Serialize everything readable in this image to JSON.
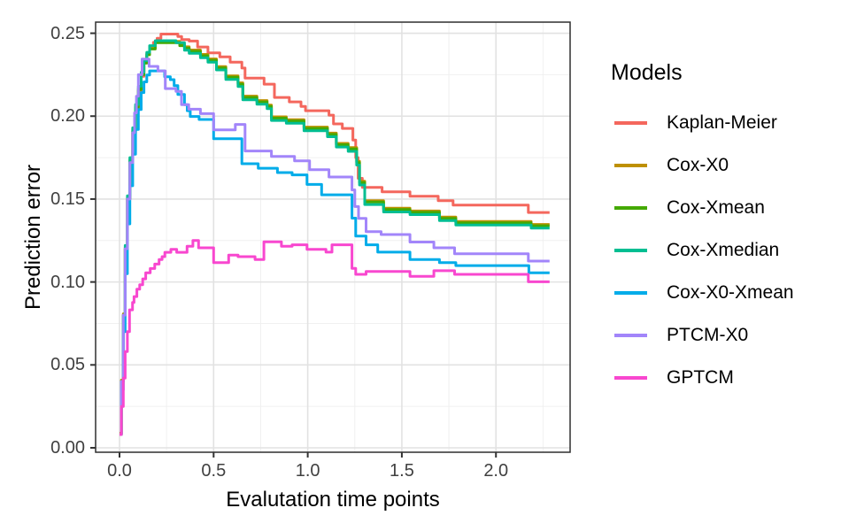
{
  "figure": {
    "background": "#ffffff",
    "legend": {
      "title": "Models"
    }
  },
  "chart_data": {
    "type": "line",
    "line_style": "step-after",
    "title": "",
    "xlabel": "Evalutation time points",
    "ylabel": "Prediction error",
    "legend_position": "right",
    "grid": true,
    "xlim": [
      -0.127,
      2.394
    ],
    "ylim": [
      -0.00267,
      0.2567
    ],
    "x_ticks": {
      "values": [
        0,
        0.5,
        1.0,
        1.5,
        2.0
      ],
      "labels": [
        "0.0",
        "0.5",
        "1.0",
        "1.5",
        "2.0"
      ]
    },
    "y_ticks": {
      "values": [
        0,
        0.05,
        0.1,
        0.15,
        0.2,
        0.25
      ],
      "labels": [
        "0.00",
        "0.05",
        "0.10",
        "0.15",
        "0.20",
        "0.25"
      ]
    },
    "x_minor": [
      0.25,
      0.75,
      1.25,
      1.75,
      2.25
    ],
    "y_minor": [
      0.025,
      0.075,
      0.125,
      0.175,
      0.225
    ],
    "panel_border_color": "#2f2f2f",
    "grid_major_color": "#e2e2e2",
    "grid_minor_color": "#f0f0f0",
    "tick_color": "#333333",
    "series": [
      {
        "name": "Kaplan-Meier",
        "color": "#f4675d",
        "points": [
          [
            0,
            0.008
          ],
          [
            0.01,
            0.04
          ],
          [
            0.02,
            0.08
          ],
          [
            0.03,
            0.12
          ],
          [
            0.042,
            0.15
          ],
          [
            0.055,
            0.172
          ],
          [
            0.07,
            0.19
          ],
          [
            0.085,
            0.204
          ],
          [
            0.1,
            0.215
          ],
          [
            0.115,
            0.224
          ],
          [
            0.13,
            0.232
          ],
          [
            0.145,
            0.2375
          ],
          [
            0.16,
            0.241
          ],
          [
            0.18,
            0.2445
          ],
          [
            0.2,
            0.247
          ],
          [
            0.22,
            0.2495
          ],
          [
            0.31,
            0.248
          ],
          [
            0.33,
            0.2462
          ],
          [
            0.37,
            0.2453
          ],
          [
            0.415,
            0.2417
          ],
          [
            0.47,
            0.2382
          ],
          [
            0.533,
            0.2358
          ],
          [
            0.588,
            0.2326
          ],
          [
            0.65,
            0.229
          ],
          [
            0.667,
            0.2229
          ],
          [
            0.768,
            0.2193
          ],
          [
            0.823,
            0.2113
          ],
          [
            0.902,
            0.2086
          ],
          [
            0.964,
            0.2059
          ],
          [
            0.988,
            0.2033
          ],
          [
            1.113,
            0.2006
          ],
          [
            1.137,
            0.1953
          ],
          [
            1.184,
            0.1926
          ],
          [
            1.24,
            0.1856
          ],
          [
            1.255,
            0.175
          ],
          [
            1.268,
            0.1625
          ],
          [
            1.29,
            0.157
          ],
          [
            1.395,
            0.1544
          ],
          [
            1.543,
            0.1517
          ],
          [
            1.693,
            0.149
          ],
          [
            1.772,
            0.1464
          ],
          [
            2.172,
            0.1419
          ],
          [
            2.285,
            0.1419
          ]
        ]
      },
      {
        "name": "Cox-X0",
        "color": "#be9000",
        "points": [
          [
            0,
            0.0088
          ],
          [
            0.01,
            0.0408
          ],
          [
            0.02,
            0.0808
          ],
          [
            0.03,
            0.1208
          ],
          [
            0.042,
            0.1508
          ],
          [
            0.055,
            0.1738
          ],
          [
            0.07,
            0.1918
          ],
          [
            0.085,
            0.2058
          ],
          [
            0.1,
            0.2168
          ],
          [
            0.115,
            0.2258
          ],
          [
            0.13,
            0.2328
          ],
          [
            0.145,
            0.2378
          ],
          [
            0.16,
            0.2413
          ],
          [
            0.19,
            0.2451
          ],
          [
            0.32,
            0.2433
          ],
          [
            0.345,
            0.2418
          ],
          [
            0.37,
            0.2399
          ],
          [
            0.43,
            0.2372
          ],
          [
            0.47,
            0.2345
          ],
          [
            0.515,
            0.2299
          ],
          [
            0.565,
            0.2243
          ],
          [
            0.63,
            0.2201
          ],
          [
            0.655,
            0.2121
          ],
          [
            0.73,
            0.2094
          ],
          [
            0.784,
            0.2067
          ],
          [
            0.807,
            0.1996
          ],
          [
            0.886,
            0.1979
          ],
          [
            0.98,
            0.1934
          ],
          [
            1.105,
            0.1898
          ],
          [
            1.152,
            0.1836
          ],
          [
            1.215,
            0.181
          ],
          [
            1.26,
            0.1728
          ],
          [
            1.275,
            0.1608
          ],
          [
            1.303,
            0.149
          ],
          [
            1.403,
            0.1445
          ],
          [
            1.543,
            0.1428
          ],
          [
            1.7,
            0.1392
          ],
          [
            1.787,
            0.1365
          ],
          [
            2.187,
            0.1347
          ],
          [
            2.285,
            0.1347
          ]
        ]
      },
      {
        "name": "Cox-Xmean",
        "color": "#44a902",
        "points": [
          [
            0,
            0.008
          ],
          [
            0.01,
            0.04
          ],
          [
            0.02,
            0.08
          ],
          [
            0.03,
            0.12
          ],
          [
            0.042,
            0.15
          ],
          [
            0.055,
            0.173
          ],
          [
            0.07,
            0.191
          ],
          [
            0.085,
            0.205
          ],
          [
            0.1,
            0.216
          ],
          [
            0.115,
            0.225
          ],
          [
            0.13,
            0.232
          ],
          [
            0.145,
            0.237
          ],
          [
            0.16,
            0.2405
          ],
          [
            0.19,
            0.2443
          ],
          [
            0.32,
            0.2425
          ],
          [
            0.345,
            0.241
          ],
          [
            0.37,
            0.2391
          ],
          [
            0.43,
            0.2364
          ],
          [
            0.47,
            0.2337
          ],
          [
            0.515,
            0.2291
          ],
          [
            0.565,
            0.2235
          ],
          [
            0.63,
            0.2193
          ],
          [
            0.655,
            0.2113
          ],
          [
            0.73,
            0.2086
          ],
          [
            0.784,
            0.2059
          ],
          [
            0.807,
            0.1988
          ],
          [
            0.886,
            0.1971
          ],
          [
            0.98,
            0.1926
          ],
          [
            1.105,
            0.189
          ],
          [
            1.152,
            0.1828
          ],
          [
            1.215,
            0.1802
          ],
          [
            1.26,
            0.172
          ],
          [
            1.275,
            0.16
          ],
          [
            1.303,
            0.1482
          ],
          [
            1.403,
            0.1437
          ],
          [
            1.543,
            0.142
          ],
          [
            1.7,
            0.1384
          ],
          [
            1.787,
            0.1357
          ],
          [
            2.187,
            0.1339
          ],
          [
            2.285,
            0.1339
          ]
        ]
      },
      {
        "name": "Cox-Xmedian",
        "color": "#00be92",
        "points": [
          [
            0,
            0.008
          ],
          [
            0.01,
            0.04
          ],
          [
            0.02,
            0.08
          ],
          [
            0.03,
            0.122
          ],
          [
            0.042,
            0.152
          ],
          [
            0.055,
            0.175
          ],
          [
            0.07,
            0.193
          ],
          [
            0.085,
            0.207
          ],
          [
            0.1,
            0.218
          ],
          [
            0.115,
            0.2265
          ],
          [
            0.13,
            0.2335
          ],
          [
            0.145,
            0.2385
          ],
          [
            0.16,
            0.2425
          ],
          [
            0.19,
            0.2455
          ],
          [
            0.3,
            0.2443
          ],
          [
            0.345,
            0.2398
          ],
          [
            0.37,
            0.2379
          ],
          [
            0.43,
            0.2352
          ],
          [
            0.47,
            0.2325
          ],
          [
            0.515,
            0.2279
          ],
          [
            0.565,
            0.2221
          ],
          [
            0.63,
            0.2179
          ],
          [
            0.655,
            0.2099
          ],
          [
            0.73,
            0.2072
          ],
          [
            0.784,
            0.2045
          ],
          [
            0.807,
            0.1974
          ],
          [
            0.886,
            0.1957
          ],
          [
            0.98,
            0.1912
          ],
          [
            1.105,
            0.1876
          ],
          [
            1.152,
            0.1814
          ],
          [
            1.215,
            0.1788
          ],
          [
            1.26,
            0.1705
          ],
          [
            1.275,
            0.1585
          ],
          [
            1.303,
            0.1467
          ],
          [
            1.403,
            0.1422
          ],
          [
            1.543,
            0.1406
          ],
          [
            1.7,
            0.137
          ],
          [
            1.787,
            0.1343
          ],
          [
            2.187,
            0.1325
          ],
          [
            2.285,
            0.1325
          ]
        ]
      },
      {
        "name": "Cox-X0-Xmean",
        "color": "#00ace9",
        "points": [
          [
            0,
            0.008
          ],
          [
            0.01,
            0.035
          ],
          [
            0.02,
            0.07
          ],
          [
            0.03,
            0.105
          ],
          [
            0.042,
            0.135
          ],
          [
            0.055,
            0.158
          ],
          [
            0.07,
            0.177
          ],
          [
            0.085,
            0.192
          ],
          [
            0.1,
            0.204
          ],
          [
            0.115,
            0.2142
          ],
          [
            0.13,
            0.2207
          ],
          [
            0.145,
            0.2248
          ],
          [
            0.16,
            0.2273
          ],
          [
            0.24,
            0.2237
          ],
          [
            0.27,
            0.222
          ],
          [
            0.29,
            0.2184
          ],
          [
            0.31,
            0.2131
          ],
          [
            0.345,
            0.2069
          ],
          [
            0.36,
            0.2033
          ],
          [
            0.376,
            0.1998
          ],
          [
            0.423,
            0.198
          ],
          [
            0.5,
            0.1864
          ],
          [
            0.65,
            0.1713
          ],
          [
            0.737,
            0.1686
          ],
          [
            0.839,
            0.166
          ],
          [
            0.917,
            0.1646
          ],
          [
            0.996,
            0.1588
          ],
          [
            1.074,
            0.1526
          ],
          [
            1.235,
            0.1385
          ],
          [
            1.255,
            0.1277
          ],
          [
            1.31,
            0.1224
          ],
          [
            1.372,
            0.118
          ],
          [
            1.543,
            0.1135
          ],
          [
            1.7,
            0.1117
          ],
          [
            1.787,
            0.1099
          ],
          [
            2.175,
            0.1055
          ],
          [
            2.285,
            0.1055
          ]
        ]
      },
      {
        "name": "PTCM-X0",
        "color": "#a285fa",
        "points": [
          [
            0,
            0.008
          ],
          [
            0.01,
            0.04
          ],
          [
            0.02,
            0.08
          ],
          [
            0.03,
            0.12
          ],
          [
            0.042,
            0.15
          ],
          [
            0.055,
            0.172
          ],
          [
            0.07,
            0.19
          ],
          [
            0.08,
            0.202
          ],
          [
            0.09,
            0.212
          ],
          [
            0.1,
            0.225
          ],
          [
            0.12,
            0.2344
          ],
          [
            0.157,
            0.23
          ],
          [
            0.204,
            0.2273
          ],
          [
            0.243,
            0.2166
          ],
          [
            0.3,
            0.2149
          ],
          [
            0.329,
            0.2069
          ],
          [
            0.368,
            0.2042
          ],
          [
            0.43,
            0.2015
          ],
          [
            0.5,
            0.1917
          ],
          [
            0.615,
            0.195
          ],
          [
            0.667,
            0.179
          ],
          [
            0.807,
            0.1757
          ],
          [
            0.93,
            0.173
          ],
          [
            1.01,
            0.1677
          ],
          [
            1.113,
            0.1633
          ],
          [
            1.235,
            0.1555
          ],
          [
            1.25,
            0.1455
          ],
          [
            1.27,
            0.1384
          ],
          [
            1.31,
            0.1304
          ],
          [
            1.39,
            0.1286
          ],
          [
            1.543,
            0.1241
          ],
          [
            1.67,
            0.1206
          ],
          [
            1.78,
            0.117
          ],
          [
            2.172,
            0.1126
          ],
          [
            2.285,
            0.1126
          ]
        ]
      },
      {
        "name": "GPTCM",
        "color": "#f847cf",
        "points": [
          [
            0,
            0.008
          ],
          [
            0.01,
            0.025
          ],
          [
            0.02,
            0.042
          ],
          [
            0.03,
            0.058
          ],
          [
            0.042,
            0.07
          ],
          [
            0.053,
            0.0832
          ],
          [
            0.069,
            0.0877
          ],
          [
            0.077,
            0.0912
          ],
          [
            0.092,
            0.0957
          ],
          [
            0.107,
            0.0983
          ],
          [
            0.123,
            0.1019
          ],
          [
            0.139,
            0.1055
          ],
          [
            0.163,
            0.1081
          ],
          [
            0.187,
            0.1108
          ],
          [
            0.21,
            0.1135
          ],
          [
            0.226,
            0.1153
          ],
          [
            0.241,
            0.1179
          ],
          [
            0.273,
            0.1197
          ],
          [
            0.304,
            0.1179
          ],
          [
            0.359,
            0.1215
          ],
          [
            0.39,
            0.125
          ],
          [
            0.42,
            0.1206
          ],
          [
            0.5,
            0.1117
          ],
          [
            0.58,
            0.1162
          ],
          [
            0.63,
            0.1153
          ],
          [
            0.72,
            0.1135
          ],
          [
            0.767,
            0.1242
          ],
          [
            0.86,
            0.1215
          ],
          [
            0.917,
            0.1224
          ],
          [
            0.996,
            0.1197
          ],
          [
            1.097,
            0.118
          ],
          [
            1.129,
            0.1224
          ],
          [
            1.235,
            0.1082
          ],
          [
            1.255,
            0.1046
          ],
          [
            1.31,
            0.1063
          ],
          [
            1.543,
            0.1034
          ],
          [
            1.67,
            0.1068
          ],
          [
            1.78,
            0.1046
          ],
          [
            2.172,
            0.1001
          ],
          [
            2.285,
            0.1001
          ]
        ]
      }
    ]
  }
}
